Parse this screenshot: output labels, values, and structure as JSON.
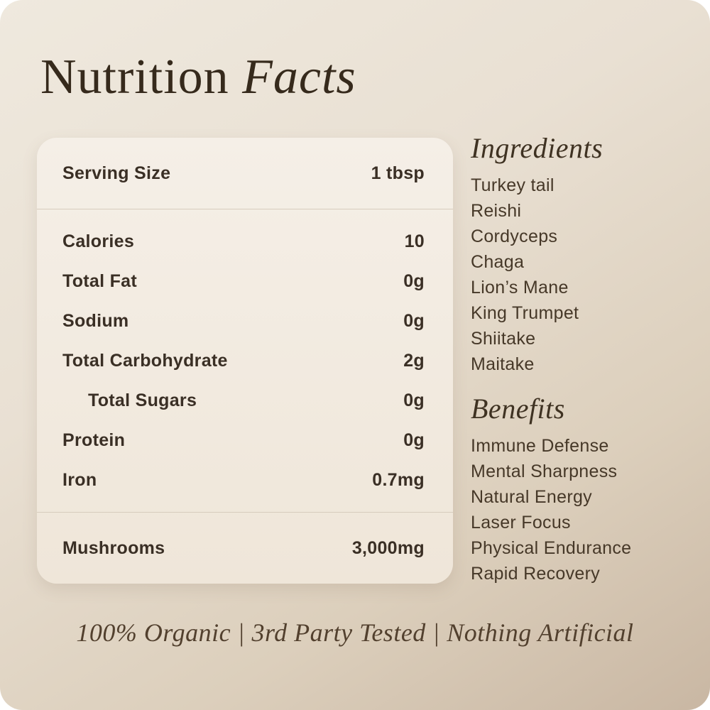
{
  "header": {
    "title_regular": "Nutrition",
    "title_italic": "Facts"
  },
  "nutrition_card": {
    "serving": {
      "label": "Serving Size",
      "value": "1 tbsp"
    },
    "rows": [
      {
        "label": "Calories",
        "value": "10"
      },
      {
        "label": "Total Fat",
        "value": "0g"
      },
      {
        "label": "Sodium",
        "value": "0g"
      },
      {
        "label": "Total Carbohydrate",
        "value": "2g"
      },
      {
        "label": "Total Sugars",
        "value": "0g"
      },
      {
        "label": "Protein",
        "value": "0g"
      },
      {
        "label": "Iron",
        "value": "0.7mg"
      }
    ],
    "footer": {
      "label": "Mushrooms",
      "value": "3,000mg"
    }
  },
  "ingredients": {
    "heading": "Ingredients",
    "items": [
      "Turkey tail",
      "Reishi",
      "Cordyceps",
      "Chaga",
      "Lion’s Mane",
      "King Trumpet",
      "Shiitake",
      "Maitake"
    ]
  },
  "benefits": {
    "heading": "Benefits",
    "items": [
      "Immune Defense",
      "Mental Sharpness",
      "Natural Energy",
      "Laser Focus",
      "Physical Endurance",
      "Rapid Recovery"
    ]
  },
  "footer": {
    "tagline": "100% Organic | 3rd Party Tested | Nothing Artificial"
  },
  "colors": {
    "background_gradient_start": "#efe9de",
    "background_gradient_end": "#c9b7a3",
    "card_background": "#f3ede3",
    "divider": "#d7ccbd",
    "text_dark_brown": "#3a2f25",
    "heading_brown": "#3f3222",
    "tagline_brown": "#52402e"
  }
}
